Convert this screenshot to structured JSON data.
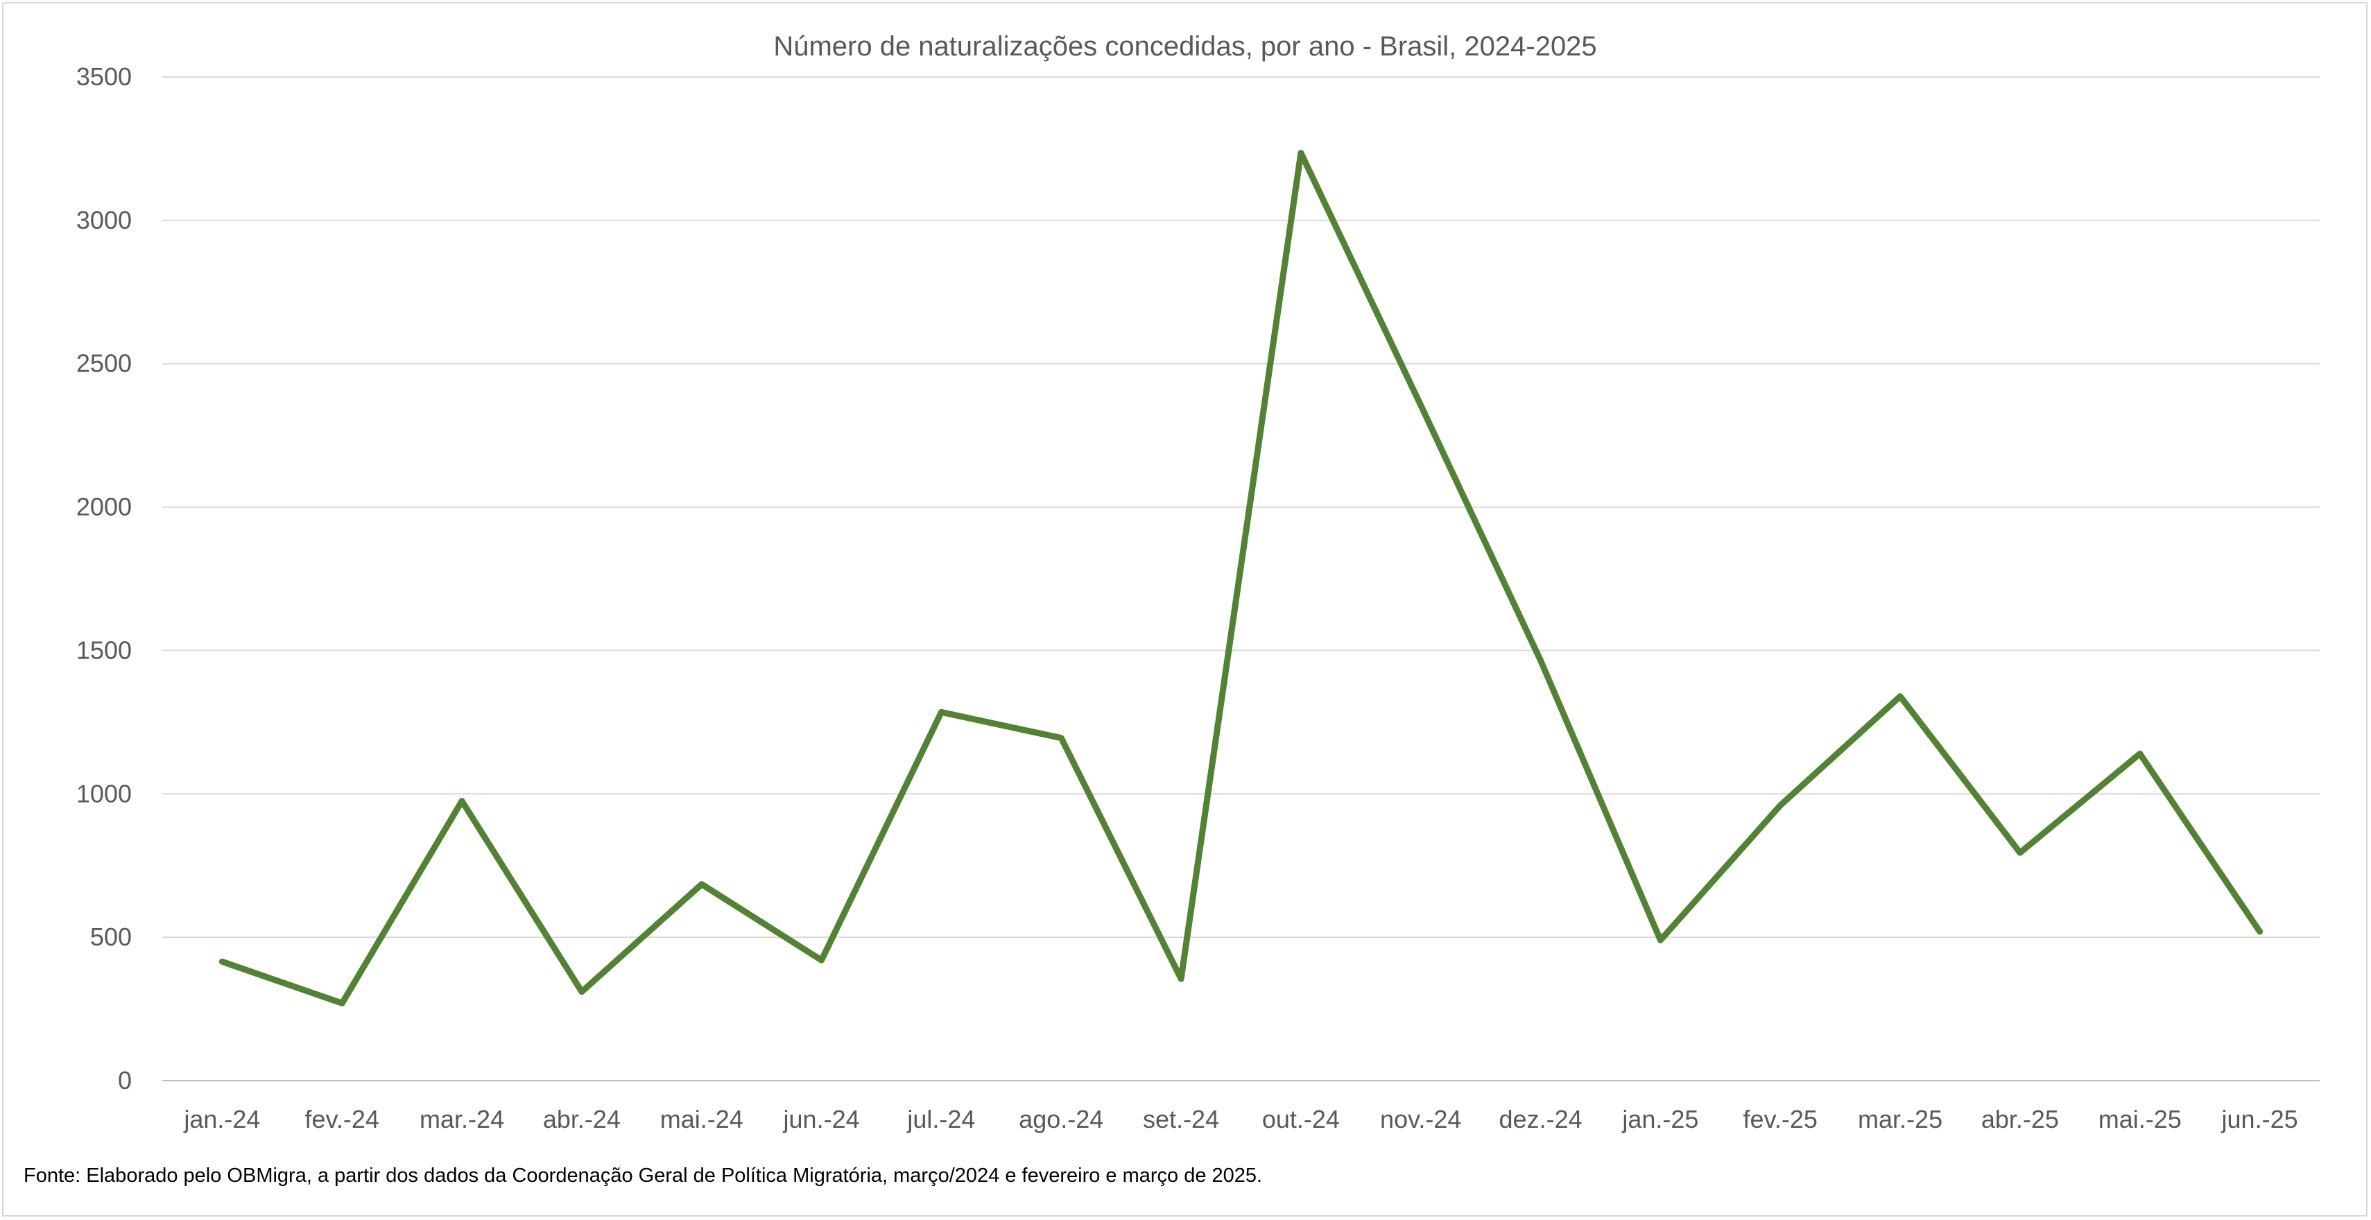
{
  "chart_data": {
    "type": "line",
    "title": "Número de naturalizações concedidas, por ano - Brasil, 2024-2025",
    "xlabel": "",
    "ylabel": "",
    "categories": [
      "jan.-24",
      "fev.-24",
      "mar.-24",
      "abr.-24",
      "mai.-24",
      "jun.-24",
      "jul.-24",
      "ago.-24",
      "set.-24",
      "out.-24",
      "nov.-24",
      "dez.-24",
      "jan.-25",
      "fev.-25",
      "mar.-25",
      "abr.-25",
      "mai.-25",
      "jun.-25"
    ],
    "series": [
      {
        "values": [
          415,
          270,
          975,
          310,
          685,
          420,
          1285,
          1195,
          355,
          3235,
          2355,
          1465,
          490,
          960,
          1340,
          795,
          1140,
          520
        ],
        "color": "#548235"
      }
    ],
    "ylim": [
      0,
      3500
    ],
    "yticks": [
      0,
      500,
      1000,
      1500,
      2000,
      2500,
      3000,
      3500
    ],
    "grid": true,
    "legend": "none"
  },
  "source_note": "Fonte: Elaborado pelo OBMigra, a partir dos dados da Coordenação Geral de Política Migratória, março/2024 e fevereiro e março de 2025."
}
